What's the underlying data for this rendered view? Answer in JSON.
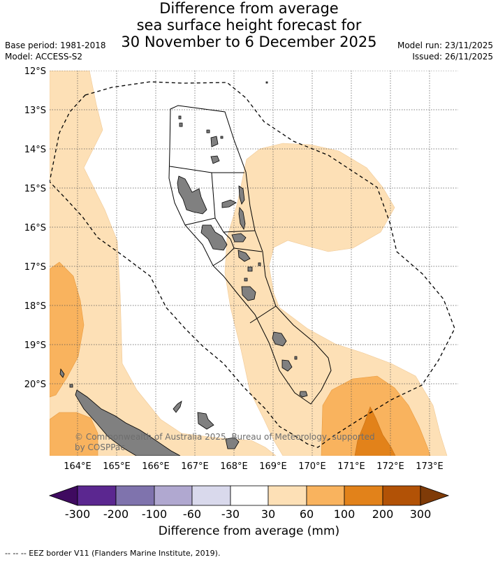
{
  "title": {
    "line1": "Difference from average",
    "line2": "sea surface height forecast for",
    "line3": "30 November to 6 December 2025"
  },
  "meta": {
    "base_period": "Base period: 1981-2018",
    "model": "Model: ACCESS-S2",
    "model_run": "Model run: 23/11/2025",
    "issued": "Issued: 26/11/2025"
  },
  "map": {
    "lat_labels": [
      "12°S",
      "13°S",
      "14°S",
      "15°S",
      "16°S",
      "17°S",
      "18°S",
      "19°S",
      "20°S"
    ],
    "lon_labels": [
      "164°E",
      "165°E",
      "166°E",
      "167°E",
      "168°E",
      "169°E",
      "170°E",
      "171°E",
      "172°E",
      "173°E"
    ],
    "copyright_line1": "© Commonwealth of Australia 2025, Bureau of Meteorology, supported",
    "copyright_line2": "by COSPPac",
    "colors": {
      "land": "#808080",
      "band_30_60": "#fde0b6",
      "band_60_100": "#f9b35e",
      "band_100_200": "#e2821a"
    }
  },
  "colorbar": {
    "tick_labels": [
      "-300",
      "-200",
      "-100",
      "-60",
      "-30",
      "30",
      "60",
      "100",
      "200",
      "300"
    ],
    "colors": [
      "#3f0a60",
      "#5b2790",
      "#7f73ad",
      "#b0a8d0",
      "#d9d9ec",
      "#ffffff",
      "#fde0b6",
      "#f9b35e",
      "#e2821a",
      "#b25206",
      "#7f3b08"
    ],
    "label": "Difference from average (mm)"
  },
  "footer": {
    "legend": "--  --  -- EEZ border V11 (Flanders Marine Institute, 2019)."
  }
}
